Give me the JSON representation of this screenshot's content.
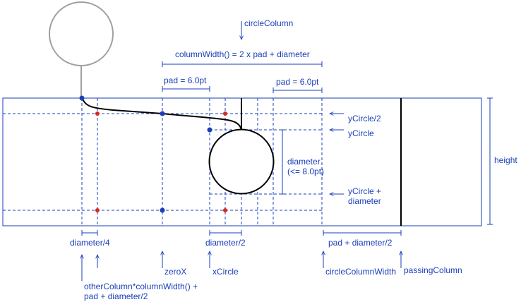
{
  "labels": {
    "circle_column": "circleColumn",
    "column_width": "columnWidth() = 2 x pad + diameter",
    "pad_left": "pad = 6.0pt",
    "pad_right": "pad = 6.0pt",
    "y_circle_half": "yCircle/2",
    "y_circle": "yCircle",
    "diameter_note_1": "diameter",
    "diameter_note_2": "(<= 8.0pt)",
    "y_circle_plus_1": "yCircle +",
    "y_circle_plus_2": "diameter",
    "height": "height",
    "diameter_quarter": "diameter/4",
    "diameter_half": "diameter/2",
    "pad_plus_half_diameter": "pad + diameter/2",
    "zero_x": "zeroX",
    "x_circle": "xCircle",
    "circle_column_width": "circleColumnWidth",
    "passing_column": "passingColumn",
    "other_column_1": "otherColumn*columnWidth() +",
    "other_column_2": "pad + diameter/2"
  },
  "colors": {
    "annotation": "#1a3fb8",
    "marker_red": "#d42b1e",
    "marker_blue": "#1a3fb8",
    "stroke_dark": "#000000",
    "stroke_grey": "#a0a0a0"
  }
}
